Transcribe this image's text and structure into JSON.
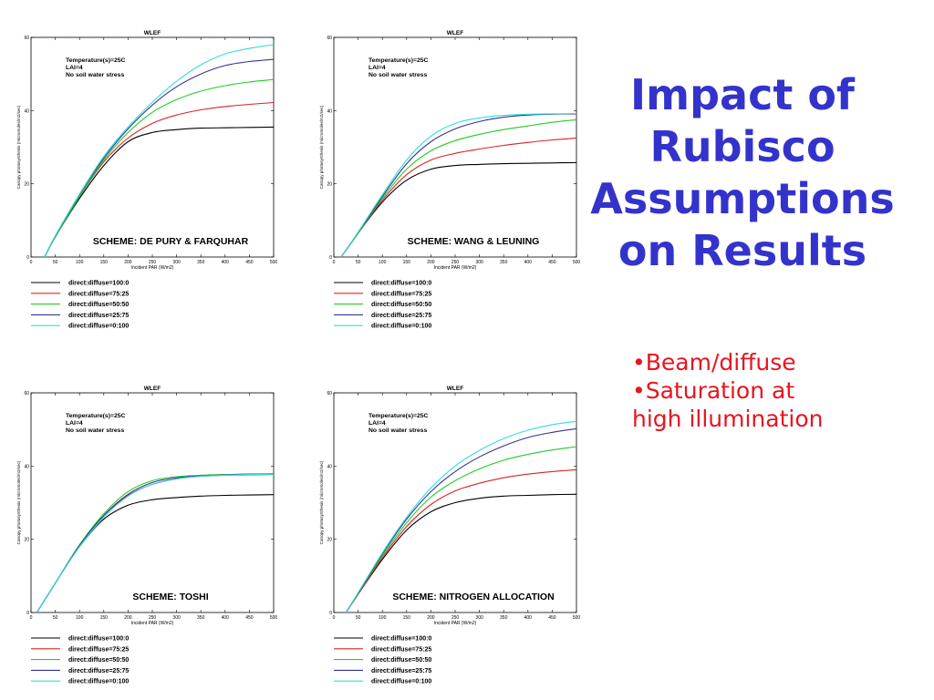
{
  "slide": {
    "title_lines": [
      "Impact of",
      "Rubisco",
      "Assumptions",
      "on Results"
    ],
    "bullets": [
      {
        "lines": [
          "•Beam/diffuse"
        ]
      },
      {
        "lines": [
          "•Saturation at",
          "high illumination"
        ]
      }
    ],
    "colors": {
      "title": "#3333cc",
      "bullets": "#e8141e"
    }
  },
  "chart_data": [
    {
      "type": "line",
      "title": "WLEF",
      "scheme_label": "SCHEME: DE PURY & FARQUHAR",
      "annotation": [
        "Temperature(s)=25C",
        "LAI=4",
        "No soil water stress"
      ],
      "xlabel": "Incident PAR (W/m2)",
      "ylabel": "Canopy photosynthesis (micromoles/m2/sec)",
      "xlim": [
        0,
        500
      ],
      "ylim": [
        0,
        60
      ],
      "xticks": [
        0,
        50,
        100,
        150,
        200,
        250,
        300,
        350,
        400,
        450,
        500
      ],
      "yticks": [
        0,
        20,
        40,
        60
      ],
      "grid": false,
      "legend_position": "below",
      "series": [
        {
          "name": "direct:diffuse=100:0",
          "color": "#000000",
          "x": [
            28,
            50,
            100,
            150,
            200,
            250,
            300,
            350,
            400,
            450,
            500
          ],
          "y": [
            0,
            5.5,
            16,
            25,
            31.5,
            34,
            34.8,
            35.2,
            35.3,
            35.4,
            35.5
          ]
        },
        {
          "name": "direct:diffuse=75:25",
          "color": "#dd2222",
          "x": [
            28,
            50,
            100,
            150,
            200,
            250,
            300,
            350,
            400,
            450,
            500
          ],
          "y": [
            0,
            5.5,
            16.5,
            26,
            32.5,
            36.5,
            38.8,
            40.2,
            41.1,
            41.7,
            42.2
          ]
        },
        {
          "name": "direct:diffuse=50:50",
          "color": "#22cc22",
          "x": [
            28,
            50,
            100,
            150,
            200,
            250,
            300,
            350,
            400,
            450,
            500
          ],
          "y": [
            0,
            5.5,
            16.5,
            26.5,
            34,
            39.5,
            43,
            45.3,
            46.8,
            47.8,
            48.5
          ]
        },
        {
          "name": "direct:diffuse=25:75",
          "color": "#333399",
          "x": [
            28,
            50,
            100,
            150,
            200,
            250,
            300,
            350,
            400,
            450,
            500
          ],
          "y": [
            0,
            5.7,
            17,
            27,
            35,
            41.5,
            46.5,
            50,
            52.3,
            53.4,
            54
          ]
        },
        {
          "name": "direct:diffuse=0:100",
          "color": "#33dddd",
          "x": [
            28,
            50,
            100,
            150,
            200,
            250,
            300,
            350,
            400,
            450,
            500
          ],
          "y": [
            0,
            5.8,
            17.2,
            27.5,
            35.5,
            42.3,
            48,
            52.5,
            55.5,
            57,
            58
          ]
        }
      ]
    },
    {
      "type": "line",
      "title": "WLEF",
      "scheme_label": "SCHEME: WANG & LEUNING",
      "annotation": [
        "Temperature(s)=25C",
        "LAI=4",
        "No soil water stress"
      ],
      "xlabel": "Incident PAR (W/m2)",
      "ylabel": "Canopy photosynthesis (micromoles/m2/sec)",
      "xlim": [
        0,
        500
      ],
      "ylim": [
        0,
        60
      ],
      "xticks": [
        0,
        50,
        100,
        150,
        200,
        250,
        300,
        350,
        400,
        450,
        500
      ],
      "yticks": [
        0,
        20,
        40,
        60
      ],
      "grid": false,
      "legend_position": "below",
      "series": [
        {
          "name": "direct:diffuse=100:0",
          "color": "#000000",
          "x": [
            15,
            50,
            100,
            150,
            200,
            250,
            300,
            350,
            400,
            450,
            500
          ],
          "y": [
            0,
            6.5,
            15,
            21,
            24,
            25,
            25.3,
            25.5,
            25.6,
            25.7,
            25.8
          ]
        },
        {
          "name": "direct:diffuse=75:25",
          "color": "#dd2222",
          "x": [
            15,
            50,
            100,
            150,
            200,
            250,
            300,
            350,
            400,
            450,
            500
          ],
          "y": [
            0,
            6.5,
            15.5,
            22.5,
            26.5,
            28.3,
            29.5,
            30.5,
            31.3,
            32,
            32.5
          ]
        },
        {
          "name": "direct:diffuse=50:50",
          "color": "#22cc22",
          "x": [
            15,
            50,
            100,
            150,
            200,
            250,
            300,
            350,
            400,
            450,
            500
          ],
          "y": [
            0,
            6.5,
            16,
            24,
            29,
            31.8,
            33.5,
            34.8,
            35.8,
            36.8,
            37.5
          ]
        },
        {
          "name": "direct:diffuse=25:75",
          "color": "#333399",
          "x": [
            15,
            50,
            100,
            150,
            200,
            250,
            300,
            350,
            400,
            450,
            500
          ],
          "y": [
            0,
            6.7,
            16.5,
            25.5,
            31.5,
            35,
            37,
            38.2,
            38.8,
            39,
            39.1
          ]
        },
        {
          "name": "direct:diffuse=0:100",
          "color": "#33dddd",
          "x": [
            15,
            50,
            100,
            150,
            200,
            250,
            300,
            350,
            400,
            450,
            500
          ],
          "y": [
            0,
            6.8,
            17,
            26.5,
            33,
            36.5,
            38,
            38.7,
            39,
            39.1,
            39.2
          ]
        }
      ]
    },
    {
      "type": "line",
      "title": "WLEF",
      "scheme_label": "SCHEME: TOSHI",
      "annotation": [
        "Temperature(s)=25C",
        "LAI=4",
        "No soil water stress"
      ],
      "xlabel": "Incident PAR (W/m2)",
      "ylabel": "Canopy photosynthesis (micromoles/m2/sec)",
      "xlim": [
        0,
        500
      ],
      "ylim": [
        0,
        60
      ],
      "xticks": [
        0,
        50,
        100,
        150,
        200,
        250,
        300,
        350,
        400,
        450,
        500
      ],
      "yticks": [
        0,
        20,
        40,
        60
      ],
      "grid": false,
      "legend_position": "below",
      "series": [
        {
          "name": "direct:diffuse=100:0",
          "color": "#000000",
          "x": [
            12,
            50,
            100,
            150,
            200,
            250,
            300,
            350,
            400,
            450,
            500
          ],
          "y": [
            0,
            8,
            18,
            25.5,
            29.3,
            30.8,
            31.4,
            31.8,
            32,
            32.1,
            32.2
          ]
        },
        {
          "name": "direct:diffuse=75:25",
          "color": "#dd2222",
          "x": [
            12,
            50,
            100,
            150,
            200,
            250,
            300,
            350,
            400,
            450,
            500
          ],
          "y": [
            0,
            8,
            18.3,
            26.5,
            32,
            35,
            36.5,
            37.2,
            37.5,
            37.6,
            37.7
          ]
        },
        {
          "name": "direct:diffuse=50:50",
          "color": "#22cc22",
          "x": [
            12,
            50,
            100,
            150,
            200,
            250,
            300,
            350,
            400,
            450,
            500
          ],
          "y": [
            0,
            8,
            18.5,
            27,
            33,
            36,
            37.1,
            37.5,
            37.7,
            37.8,
            37.8
          ]
        },
        {
          "name": "direct:diffuse=25:75",
          "color": "#333399",
          "x": [
            12,
            50,
            100,
            150,
            200,
            250,
            300,
            350,
            400,
            450,
            500
          ],
          "y": [
            0,
            8,
            18.3,
            26.5,
            32.3,
            35.5,
            36.8,
            37.3,
            37.6,
            37.8,
            37.9
          ]
        },
        {
          "name": "direct:diffuse=0:100",
          "color": "#33dddd",
          "x": [
            12,
            50,
            100,
            150,
            200,
            250,
            300,
            350,
            400,
            450,
            500
          ],
          "y": [
            0,
            8,
            18,
            26,
            31.8,
            35,
            36.5,
            37.2,
            37.5,
            37.7,
            37.8
          ]
        }
      ]
    },
    {
      "type": "line",
      "title": "WLEF",
      "scheme_label": "SCHEME: NITROGEN ALLOCATION",
      "annotation": [
        "Temperature(s)=25C",
        "LAI=4",
        "No soil water stress"
      ],
      "xlabel": "Incident PAR (W/m2)",
      "ylabel": "Canopy photosynthesis (micromoles/m2/sec)",
      "xlim": [
        0,
        500
      ],
      "ylim": [
        0,
        60
      ],
      "xticks": [
        0,
        50,
        100,
        150,
        200,
        250,
        300,
        350,
        400,
        450,
        500
      ],
      "yticks": [
        0,
        20,
        40,
        60
      ],
      "grid": false,
      "legend_position": "below",
      "series": [
        {
          "name": "direct:diffuse=100:0",
          "color": "#000000",
          "x": [
            25,
            50,
            100,
            150,
            200,
            250,
            300,
            350,
            400,
            450,
            500
          ],
          "y": [
            0,
            5,
            14.5,
            22.5,
            27.5,
            30,
            31.2,
            31.8,
            32,
            32.2,
            32.3
          ]
        },
        {
          "name": "direct:diffuse=75:25",
          "color": "#dd2222",
          "x": [
            25,
            50,
            100,
            150,
            200,
            250,
            300,
            350,
            400,
            450,
            500
          ],
          "y": [
            0,
            5,
            15,
            23.5,
            29.5,
            33.2,
            35.3,
            36.8,
            37.8,
            38.5,
            39
          ]
        },
        {
          "name": "direct:diffuse=50:50",
          "color": "#22cc22",
          "x": [
            25,
            50,
            100,
            150,
            200,
            250,
            300,
            350,
            400,
            450,
            500
          ],
          "y": [
            0,
            5.2,
            15.5,
            24.5,
            31.5,
            36,
            39.2,
            41.6,
            43.2,
            44.4,
            45.3
          ]
        },
        {
          "name": "direct:diffuse=25:75",
          "color": "#333399",
          "x": [
            25,
            50,
            100,
            150,
            200,
            250,
            300,
            350,
            400,
            450,
            500
          ],
          "y": [
            0,
            5.3,
            16,
            25.5,
            33,
            38.5,
            42.5,
            45.5,
            47.8,
            49.2,
            50.2
          ]
        },
        {
          "name": "direct:diffuse=0:100",
          "color": "#33dddd",
          "x": [
            25,
            50,
            100,
            150,
            200,
            250,
            300,
            350,
            400,
            450,
            500
          ],
          "y": [
            0,
            5.4,
            16.3,
            26,
            34,
            40,
            44.3,
            47.5,
            49.8,
            51.3,
            52.2
          ]
        }
      ]
    }
  ]
}
